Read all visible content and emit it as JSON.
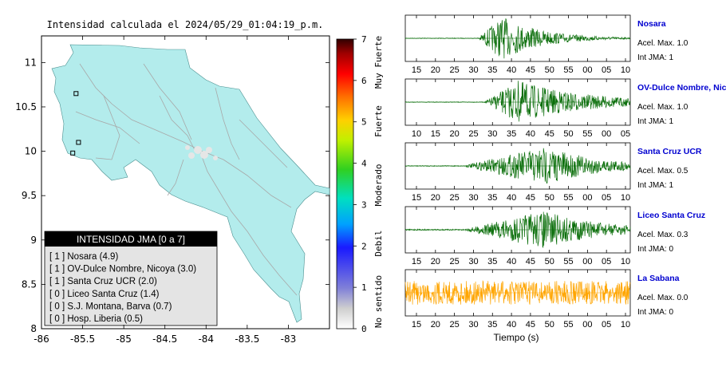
{
  "map": {
    "title": "Intensidad calculada el 2024/05/29_01:04:19_p.m.",
    "xticks": [
      "-86",
      "-85.5",
      "-85",
      "-84.5",
      "-84",
      "-83.5",
      "-83"
    ],
    "yticks": [
      "11",
      "10.5",
      "10",
      "9.5",
      "9",
      "8.5",
      "8"
    ],
    "xlim": [
      -86,
      -82.5
    ],
    "ylim": [
      8,
      11.3
    ],
    "land_color": "#b3ecec",
    "stations": [
      {
        "name": "Nosara",
        "lon": -85.62,
        "lat": 9.98
      },
      {
        "name": "Santa Cruz",
        "lon": -85.55,
        "lat": 10.1
      },
      {
        "name": "Liceo Santa Cruz",
        "lon": -85.58,
        "lat": 10.65
      }
    ]
  },
  "legend": {
    "title": "INTENSIDAD JMA [0 a 7]",
    "items": [
      "[ 1 ]  Nosara (4.9)",
      "[ 1 ]  OV-Dulce Nombre, Nicoya (3.0)",
      "[ 1 ]  Santa Cruz UCR (2.0)",
      "[ 0 ]  Liceo Santa Cruz (1.4)",
      "[ 0 ]  S.J. Montana, Barva (0.7)",
      "[ 0 ]  Hosp. Liberia (0.5)"
    ]
  },
  "colorbar": {
    "ticks": [
      "7",
      "6",
      "5",
      "4",
      "3",
      "2",
      "1",
      "0"
    ],
    "labels": [
      "Muy Fuerte",
      "Fuerte",
      "Moderado",
      "Debil",
      "No sentido"
    ]
  },
  "chart_data": {
    "type": "line",
    "xlabel": "Tiempo (s)",
    "panels": [
      {
        "name": "Nosara",
        "acel": "Acel. Max. 1.0",
        "int": "Int JMA: 1",
        "color": "#0a6e0a",
        "ticks": [
          "15",
          "20",
          "25",
          "30",
          "35",
          "40",
          "45",
          "50",
          "55",
          "00",
          "05",
          "10"
        ],
        "onset": 0.32,
        "peak": 0.43,
        "noise": 0.015,
        "amp": 1.0,
        "decay": 0.18
      },
      {
        "name": "OV-Dulce Nombre, Nicoya",
        "acel": "Acel. Max. 1.0",
        "int": "Int JMA: 1",
        "color": "#0a6e0a",
        "ticks": [
          "10",
          "15",
          "20",
          "25",
          "30",
          "35",
          "40",
          "45",
          "50",
          "55",
          "00",
          "05"
        ],
        "onset": 0.35,
        "peak": 0.5,
        "noise": 0.015,
        "amp": 1.0,
        "decay": 0.3
      },
      {
        "name": "Santa Cruz UCR",
        "acel": "Acel. Max. 0.5",
        "int": "Int JMA: 1",
        "color": "#0a6e0a",
        "ticks": [
          "15",
          "20",
          "25",
          "30",
          "35",
          "40",
          "45",
          "50",
          "55",
          "00",
          "05",
          "10"
        ],
        "onset": 0.25,
        "peak": 0.62,
        "noise": 0.02,
        "amp": 0.9,
        "decay": 0.25
      },
      {
        "name": "Liceo Santa Cruz",
        "acel": "Acel. Max. 0.3",
        "int": "Int JMA: 0",
        "color": "#0a6e0a",
        "ticks": [
          "15",
          "20",
          "25",
          "30",
          "35",
          "40",
          "45",
          "50",
          "55",
          "00",
          "05",
          "10"
        ],
        "onset": 0.25,
        "peak": 0.62,
        "noise": 0.03,
        "amp": 0.9,
        "decay": 0.25
      },
      {
        "name": "La Sabana",
        "acel": "Acel. Max. 0.0",
        "int": "Int JMA: 0",
        "color": "#ffa500",
        "ticks": [
          "15",
          "20",
          "25",
          "30",
          "35",
          "40",
          "45",
          "50",
          "55",
          "00",
          "05",
          "10"
        ],
        "onset": 0.0,
        "peak": 0.1,
        "noise": 0.55,
        "amp": 0.55,
        "decay": 10
      }
    ]
  }
}
